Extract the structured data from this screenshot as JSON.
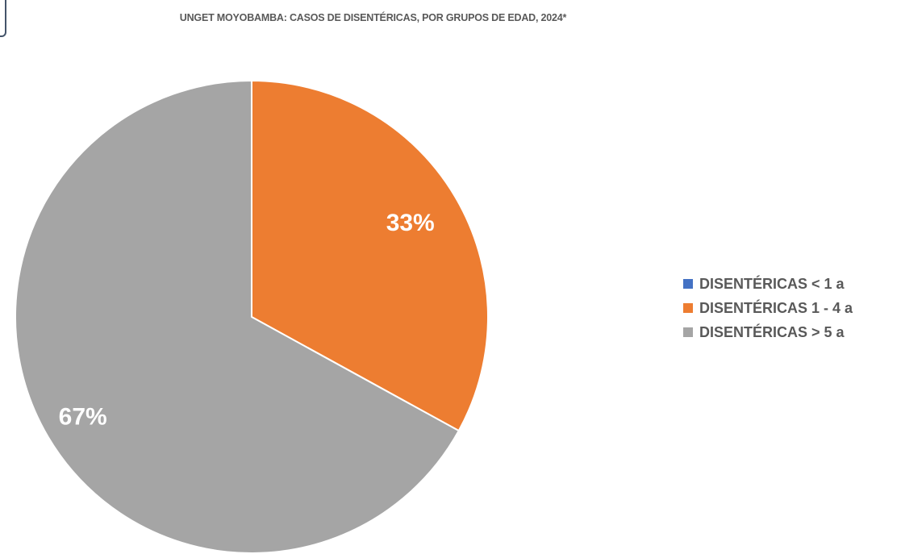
{
  "chart_data": {
    "type": "pie",
    "title": "UNGET MOYOBAMBA: CASOS DE DISENTÉRICAS, POR GRUPOS DE EDAD, 2024*",
    "categories": [
      "DISENTÉRICAS < 1 a",
      "DISENTÉRICAS 1 - 4 a",
      "DISENTÉRICAS > 5 a"
    ],
    "values": [
      0,
      33,
      67
    ],
    "data_labels": [
      "",
      "33%",
      "67%"
    ],
    "colors": [
      "#4472c4",
      "#ed7d31",
      "#a5a5a5"
    ],
    "legend_position": "right"
  }
}
